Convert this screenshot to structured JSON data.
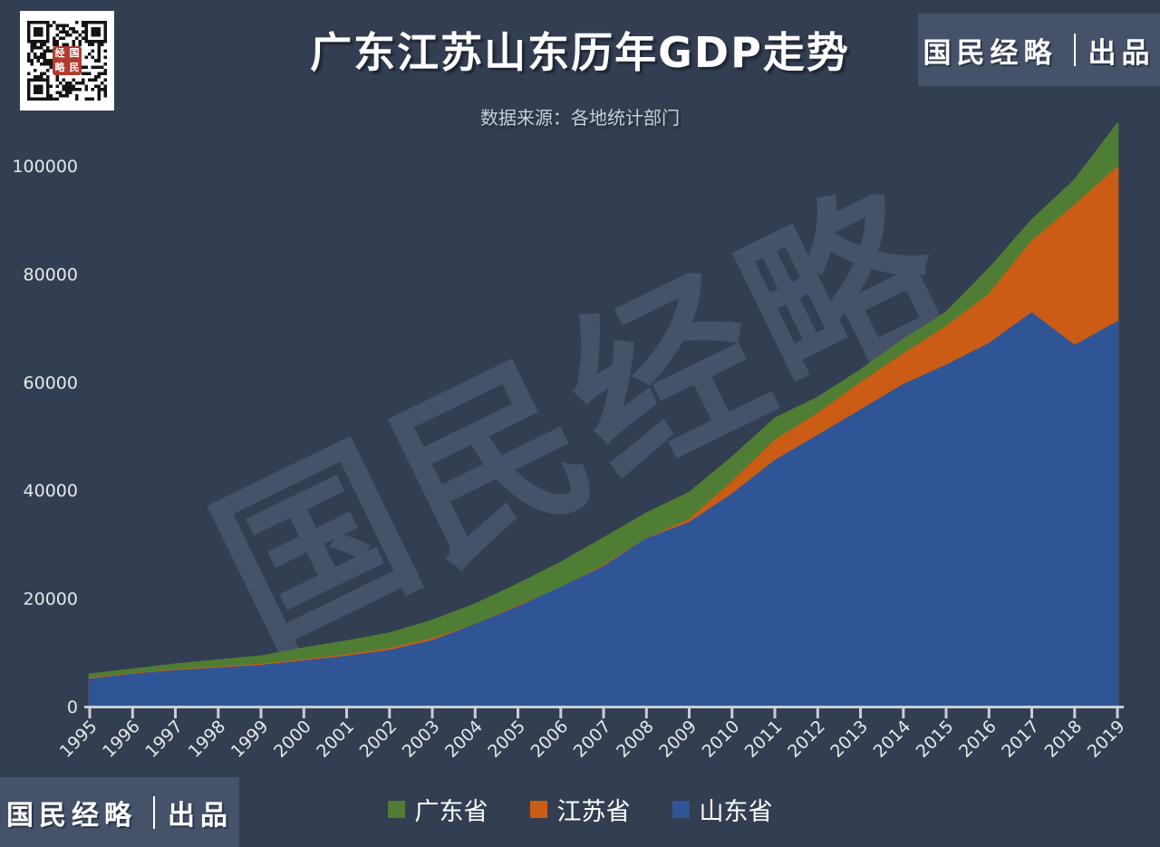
{
  "title": "广东江苏山东历年GDP走势",
  "subtitle": "数据来源：各地统计部门",
  "badge": {
    "brand": "国民经略",
    "divider": "｜",
    "product": "出品"
  },
  "watermark": "国民经略",
  "qr": {
    "seal_grid": [
      "经",
      "国",
      "略",
      "民"
    ]
  },
  "colors": {
    "background": "#333E52",
    "badge_background": "#465269",
    "title_text": "#FFFFFF",
    "subtitle_text": "#C9CFD8",
    "watermark_text": "#46526A",
    "axis_line": "#C9CED6",
    "tick_label": "#E6E8EC",
    "legend_text": "#FFFFFF",
    "qr_seal_red": "#B23A2E",
    "guangdong_green": "#4F7D33",
    "jiangsu_orange": "#CB5C15",
    "shandong_blue": "#2F5597"
  },
  "chart_data": {
    "type": "area",
    "stacked": false,
    "title": "广东江苏山东历年GDP走势",
    "xlabel": "",
    "ylabel": "",
    "grid": false,
    "legend_position": "bottom",
    "ylim": [
      0,
      110000
    ],
    "yticks": [
      0,
      20000,
      40000,
      60000,
      80000,
      100000
    ],
    "x": [
      1995,
      1996,
      1997,
      1998,
      1999,
      2000,
      2001,
      2002,
      2003,
      2004,
      2005,
      2006,
      2007,
      2008,
      2009,
      2010,
      2011,
      2012,
      2013,
      2014,
      2015,
      2016,
      2017,
      2018,
      2019
    ],
    "series": [
      {
        "name": "广东省",
        "color": "#4F7D33",
        "values": [
          5934,
          6835,
          7775,
          8530,
          9251,
          10741,
          12039,
          13502,
          15845,
          18865,
          22557,
          26588,
          31084,
          35696,
          39483,
          46013,
          53210,
          57068,
          62164,
          67792,
          72813,
          80855,
          89879,
          97278,
          107671
        ]
      },
      {
        "name": "江苏省",
        "color": "#CB5C15",
        "values": [
          5155,
          6004,
          6680,
          7200,
          7698,
          8554,
          9457,
          10607,
          12443,
          15004,
          18599,
          21742,
          26018,
          30982,
          34457,
          41425,
          49110,
          54058,
          59753,
          65088,
          70116,
          76086,
          85900,
          92595,
          99631
        ]
      },
      {
        "name": "山东省",
        "color": "#2F5597",
        "values": [
          4953,
          5884,
          6537,
          7021,
          7493,
          8338,
          9195,
          10276,
          12078,
          15021,
          18367,
          21900,
          25777,
          30933,
          33897,
          39170,
          45362,
          50013,
          54684,
          59427,
          63002,
          67008,
          72678,
          66649,
          71067
        ]
      }
    ]
  }
}
